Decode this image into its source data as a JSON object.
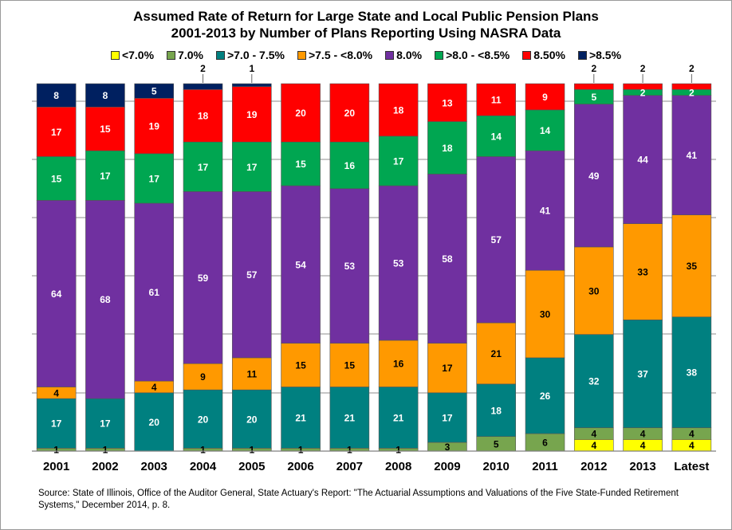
{
  "chart_data": {
    "type": "bar",
    "stacked": true,
    "title_line1": "Assumed Rate of Return for Large State and Local Public Pension Plans",
    "title_line2": "2001-2013 by Number of Plans Reporting Using NASRA Data",
    "xlabel": "",
    "ylabel": "",
    "grid": true,
    "legend_placement": "top",
    "categories": [
      "2001",
      "2002",
      "2003",
      "2004",
      "2005",
      "2006",
      "2007",
      "2008",
      "2009",
      "2010",
      "2011",
      "2012",
      "2013",
      "Latest"
    ],
    "series": [
      {
        "name": "<7.0%",
        "color": "#ffff00",
        "values": [
          0,
          0,
          0,
          0,
          0,
          0,
          0,
          0,
          0,
          0,
          0,
          4,
          4,
          4
        ]
      },
      {
        "name": "7.0%",
        "color": "#77a54e",
        "values": [
          1,
          1,
          0,
          1,
          1,
          1,
          1,
          1,
          3,
          5,
          6,
          4,
          4,
          4
        ]
      },
      {
        "name": ">7.0 - 7.5%",
        "color": "#008080",
        "values": [
          17,
          17,
          20,
          20,
          20,
          21,
          21,
          21,
          17,
          18,
          26,
          32,
          37,
          38
        ]
      },
      {
        "name": ">7.5 - <8.0%",
        "color": "#ff9900",
        "values": [
          4,
          0,
          4,
          9,
          11,
          15,
          15,
          16,
          17,
          21,
          30,
          30,
          33,
          35
        ]
      },
      {
        "name": "8.0%",
        "color": "#7030a0",
        "values": [
          64,
          68,
          61,
          59,
          57,
          54,
          53,
          53,
          58,
          57,
          41,
          49,
          44,
          41
        ]
      },
      {
        "name": ">8.0 - <8.5%",
        "color": "#00a651",
        "values": [
          15,
          17,
          17,
          17,
          17,
          15,
          16,
          17,
          18,
          14,
          14,
          5,
          2,
          2
        ]
      },
      {
        "name": "8.50%",
        "color": "#ff0000",
        "values": [
          17,
          15,
          19,
          18,
          19,
          20,
          20,
          18,
          13,
          11,
          9,
          2,
          2,
          2
        ]
      },
      {
        "name": ">8.5%",
        "color": "#002060",
        "values": [
          8,
          8,
          5,
          2,
          1,
          0,
          0,
          0,
          0,
          0,
          0,
          0,
          0,
          0
        ]
      }
    ]
  },
  "source": "Source: State of Illinois, Office of the Auditor General, State Actuary's Report: \"The Actuarial Assumptions and Valuations of the Five State-Funded Retirement Systems,\" December 2014, p. 8."
}
